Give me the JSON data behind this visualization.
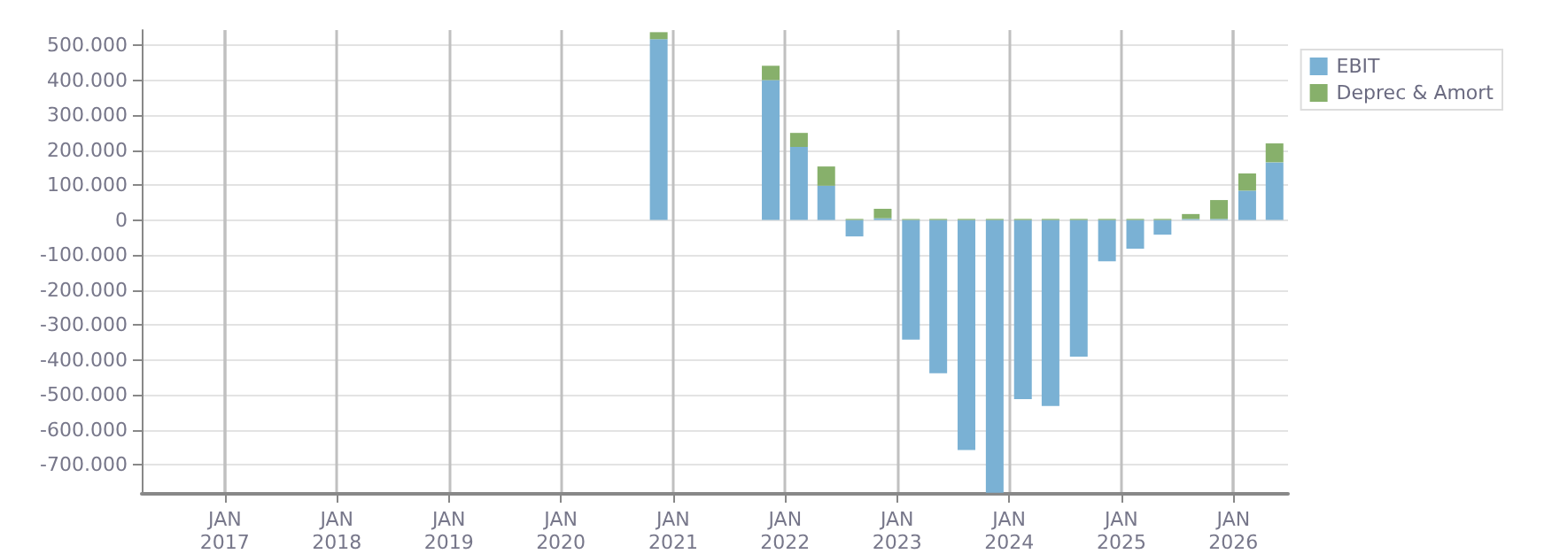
{
  "chart_data": {
    "type": "bar",
    "stacked": true,
    "x": [
      "2020-11-15",
      "2021-11-15",
      "2022-02-15",
      "2022-05-15",
      "2022-08-15",
      "2022-11-15",
      "2023-02-15",
      "2023-05-15",
      "2023-08-15",
      "2023-11-15",
      "2024-02-15",
      "2024-05-15",
      "2024-08-15",
      "2024-11-15",
      "2025-02-15",
      "2025-05-15",
      "2025-08-15",
      "2025-11-15",
      "2026-02-15",
      "2026-05-15"
    ],
    "series": [
      {
        "name": "EBIT",
        "color": "#7ab1d4",
        "values": [
          517000,
          400000,
          209000,
          98000,
          -47000,
          5000,
          -342000,
          -438000,
          -658000,
          -780000,
          -512000,
          -532000,
          -391000,
          -118000,
          -82000,
          -42000,
          3000,
          3000,
          84000,
          165000
        ]
      },
      {
        "name": "Deprec & Amort",
        "color": "#87b06b",
        "values": [
          20000,
          41000,
          40000,
          55000,
          3000,
          27000,
          3000,
          3000,
          3000,
          3000,
          3000,
          3000,
          3000,
          3000,
          3000,
          3000,
          14000,
          54000,
          49000,
          54000
        ]
      }
    ],
    "xlim": [
      "2016-04-05",
      "2026-06-28"
    ],
    "xticks": [
      {
        "value": "2017-01-01",
        "label": "JAN\n2017"
      },
      {
        "value": "2018-01-01",
        "label": "JAN\n2018"
      },
      {
        "value": "2019-01-01",
        "label": "JAN\n2019"
      },
      {
        "value": "2020-01-01",
        "label": "JAN\n2020"
      },
      {
        "value": "2021-01-01",
        "label": "JAN\n2021"
      },
      {
        "value": "2022-01-01",
        "label": "JAN\n2022"
      },
      {
        "value": "2023-01-01",
        "label": "JAN\n2023"
      },
      {
        "value": "2024-01-01",
        "label": "JAN\n2024"
      },
      {
        "value": "2025-01-01",
        "label": "JAN\n2025"
      },
      {
        "value": "2026-01-01",
        "label": "JAN\n2026"
      }
    ],
    "ylim": [
      -783000,
      543000
    ],
    "yticks": [
      {
        "value": -700000,
        "label": "-700.000"
      },
      {
        "value": -600000,
        "label": "-600.000"
      },
      {
        "value": -500000,
        "label": "-500.000"
      },
      {
        "value": -400000,
        "label": "-400.000"
      },
      {
        "value": -300000,
        "label": "-300.000"
      },
      {
        "value": -200000,
        "label": "-200.000"
      },
      {
        "value": -100000,
        "label": "-100.000"
      },
      {
        "value": 0,
        "label": "0"
      },
      {
        "value": 100000,
        "label": "100.000"
      },
      {
        "value": 200000,
        "label": "200.000"
      },
      {
        "value": 300000,
        "label": "300.000"
      },
      {
        "value": 400000,
        "label": "400.000"
      },
      {
        "value": 500000,
        "label": "500.000"
      }
    ],
    "grid": true,
    "legend": "top right"
  }
}
